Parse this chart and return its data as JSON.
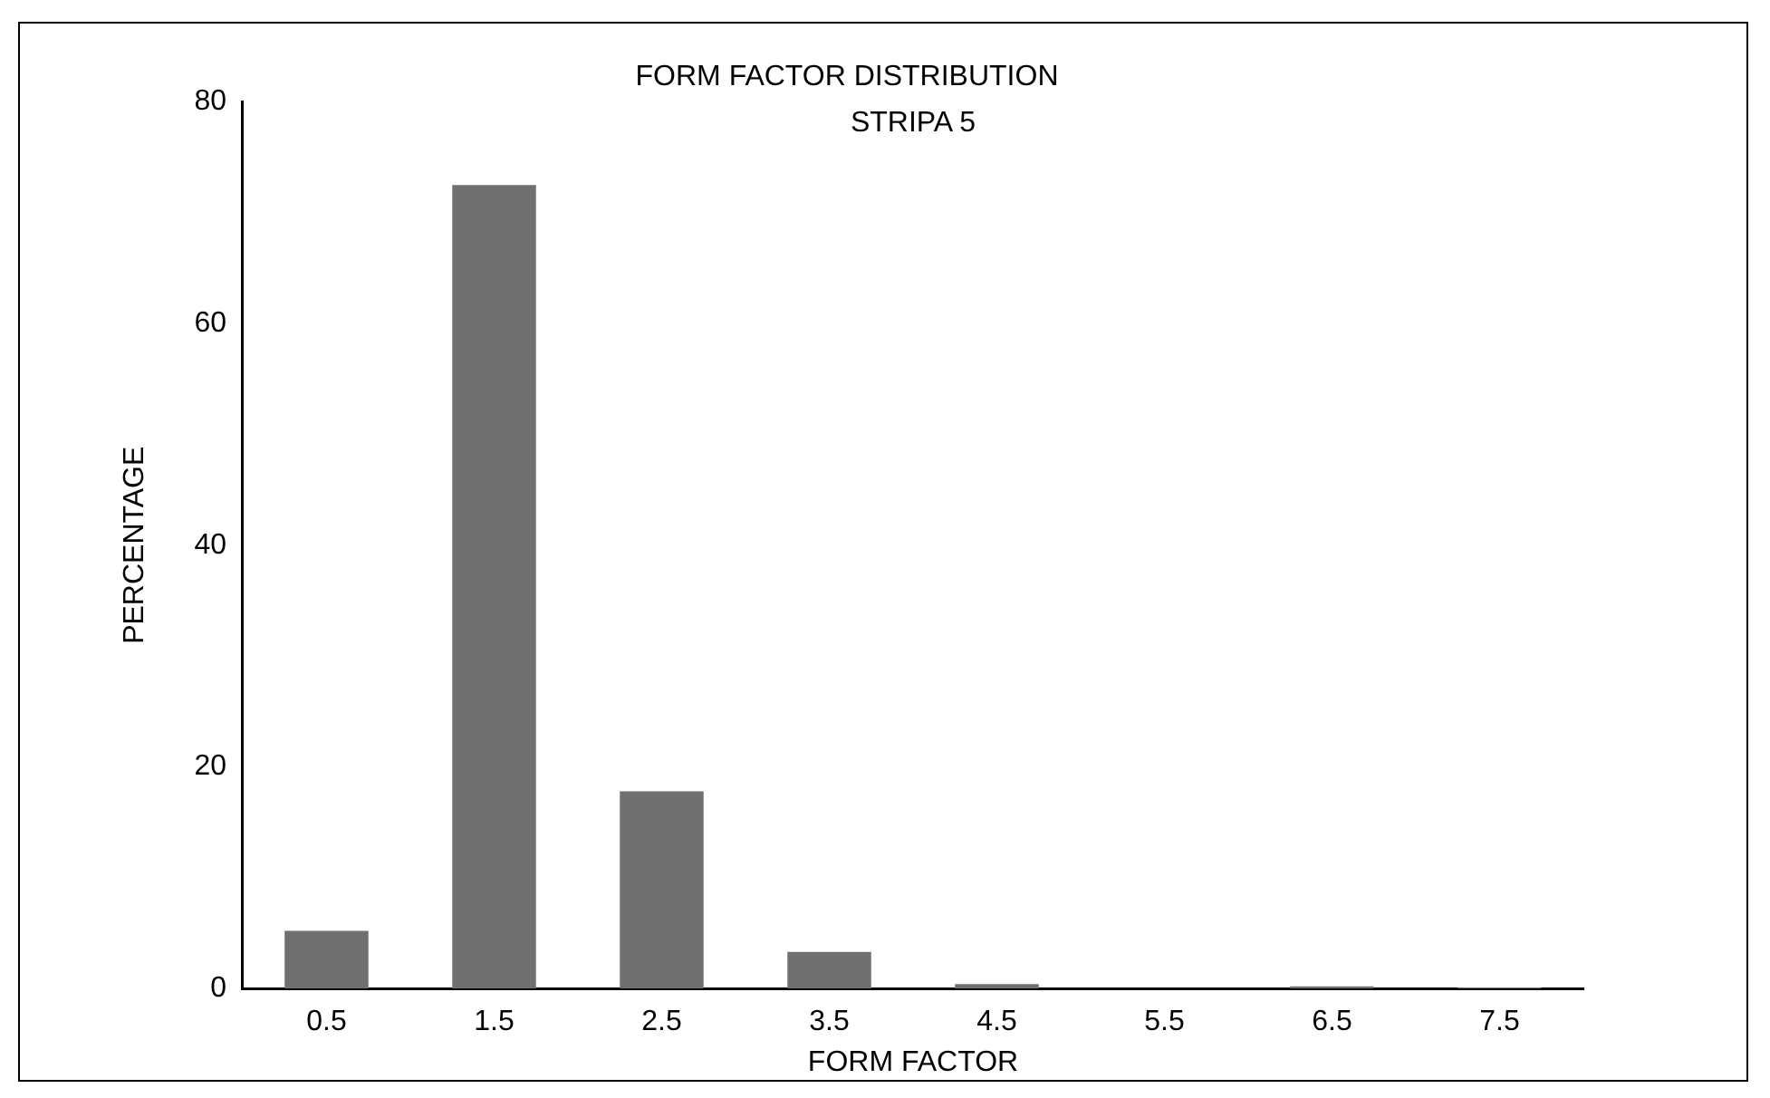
{
  "chart_data": {
    "type": "bar",
    "title": "FORM FACTOR DISTRIBUTION",
    "subtitle": "STRIPA 5",
    "xlabel": "FORM FACTOR",
    "ylabel": "PERCENTAGE",
    "categories": [
      "0.5",
      "1.5",
      "2.5",
      "3.5",
      "4.5",
      "5.5",
      "6.5",
      "7.5"
    ],
    "values": [
      5.2,
      72.5,
      17.8,
      3.3,
      0.4,
      0,
      0.2,
      0.1
    ],
    "color": "#707070",
    "ylim": [
      0,
      80
    ],
    "yticks": [
      0,
      20,
      40,
      60,
      80
    ],
    "grid": false,
    "legend": false
  }
}
